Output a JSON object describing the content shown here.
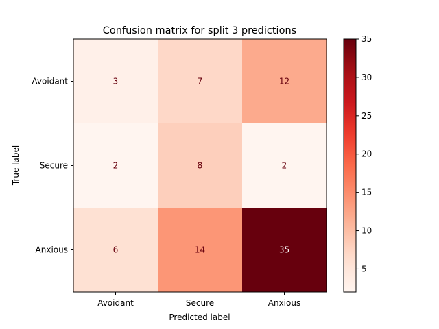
{
  "chart_data": {
    "type": "heatmap",
    "title": "Confusion matrix for split 3 predictions",
    "xlabel": "Predicted label",
    "ylabel": "True label",
    "x_categories": [
      "Avoidant",
      "Secure",
      "Anxious"
    ],
    "y_categories": [
      "Avoidant",
      "Secure",
      "Anxious"
    ],
    "values": [
      [
        3,
        7,
        12
      ],
      [
        2,
        8,
        2
      ],
      [
        6,
        14,
        35
      ]
    ],
    "colormap": "Reds",
    "colorbar": {
      "vmin": 2,
      "vmax": 35,
      "ticks": [
        5,
        10,
        15,
        20,
        25,
        30,
        35
      ]
    },
    "grid": false
  }
}
